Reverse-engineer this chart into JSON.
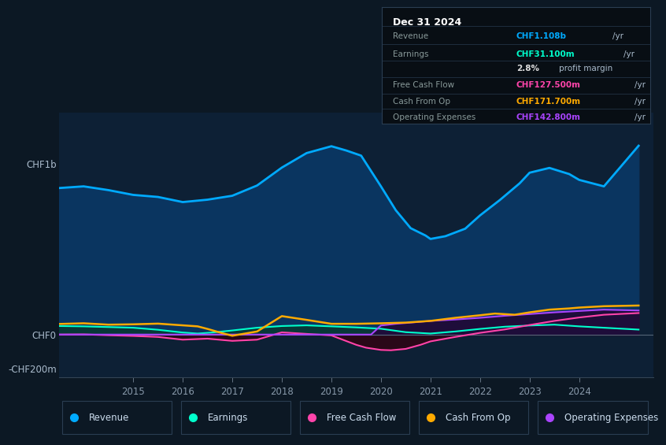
{
  "bg_color": "#0c1824",
  "plot_bg_color": "#0d2035",
  "grid_color": "#1a3550",
  "revenue_color": "#00aaff",
  "earnings_color": "#00ffcc",
  "fcf_color": "#ff44aa",
  "cashfromop_color": "#ffaa00",
  "opex_color": "#aa44ff",
  "revenue_fill": "#0a3560",
  "earnings_fill": "#083838",
  "fcf_fill": "#2a0818",
  "opex_fill": "#1e0d3a",
  "ylim": [
    -250,
    1300
  ],
  "xlim": [
    2013.5,
    2025.5
  ],
  "revenue_x": [
    2013.5,
    2014.0,
    2014.5,
    2015.0,
    2015.5,
    2016.0,
    2016.5,
    2017.0,
    2017.5,
    2018.0,
    2018.5,
    2019.0,
    2019.3,
    2019.6,
    2020.0,
    2020.3,
    2020.6,
    2020.9,
    2021.0,
    2021.3,
    2021.7,
    2022.0,
    2022.4,
    2022.8,
    2023.0,
    2023.4,
    2023.8,
    2024.0,
    2024.5,
    2025.2
  ],
  "revenue_y": [
    860,
    870,
    848,
    820,
    808,
    778,
    792,
    815,
    875,
    980,
    1065,
    1105,
    1080,
    1050,
    870,
    730,
    625,
    582,
    562,
    578,
    622,
    700,
    790,
    888,
    950,
    978,
    942,
    908,
    870,
    1108
  ],
  "earnings_x": [
    2013.5,
    2014.0,
    2014.5,
    2015.0,
    2015.5,
    2016.0,
    2016.3,
    2016.6,
    2017.0,
    2017.5,
    2018.0,
    2018.5,
    2019.0,
    2019.5,
    2020.0,
    2020.5,
    2021.0,
    2021.5,
    2022.0,
    2022.5,
    2023.0,
    2023.5,
    2024.0,
    2024.5,
    2025.2
  ],
  "earnings_y": [
    52,
    50,
    46,
    42,
    30,
    14,
    8,
    14,
    26,
    42,
    52,
    56,
    50,
    44,
    36,
    16,
    8,
    20,
    35,
    48,
    55,
    60,
    50,
    42,
    31
  ],
  "fcf_x": [
    2013.5,
    2014.0,
    2014.5,
    2015.0,
    2015.5,
    2016.0,
    2016.5,
    2017.0,
    2017.5,
    2018.0,
    2018.5,
    2019.0,
    2019.5,
    2019.7,
    2020.0,
    2020.2,
    2020.5,
    2020.8,
    2021.0,
    2021.5,
    2022.0,
    2022.5,
    2023.0,
    2023.5,
    2024.0,
    2024.5,
    2025.2
  ],
  "fcf_y": [
    2,
    3,
    -2,
    -6,
    -12,
    -28,
    -22,
    -35,
    -28,
    15,
    6,
    -3,
    -58,
    -75,
    -88,
    -90,
    -82,
    -58,
    -38,
    -12,
    12,
    32,
    58,
    82,
    102,
    118,
    128
  ],
  "cashfromop_x": [
    2013.5,
    2014.0,
    2014.5,
    2015.0,
    2015.5,
    2016.0,
    2016.3,
    2016.5,
    2016.8,
    2017.0,
    2017.5,
    2018.0,
    2018.5,
    2019.0,
    2019.5,
    2020.0,
    2020.5,
    2021.0,
    2021.5,
    2022.0,
    2022.3,
    2022.7,
    2023.0,
    2023.4,
    2023.8,
    2024.0,
    2024.5,
    2025.2
  ],
  "cashfromop_y": [
    64,
    68,
    60,
    62,
    66,
    56,
    50,
    35,
    10,
    -5,
    20,
    110,
    88,
    65,
    65,
    68,
    72,
    82,
    100,
    115,
    125,
    118,
    132,
    148,
    155,
    160,
    168,
    172
  ],
  "opex_x": [
    2013.5,
    2014.0,
    2014.5,
    2015.0,
    2015.5,
    2016.0,
    2016.5,
    2017.0,
    2017.5,
    2018.0,
    2018.5,
    2019.0,
    2019.5,
    2019.8,
    2020.0,
    2020.3,
    2020.6,
    2021.0,
    2021.5,
    2022.0,
    2022.5,
    2023.0,
    2023.5,
    2024.0,
    2024.5,
    2025.2
  ],
  "opex_y": [
    2,
    2,
    2,
    2,
    2,
    2,
    2,
    2,
    2,
    2,
    2,
    2,
    2,
    2,
    55,
    65,
    72,
    82,
    90,
    100,
    112,
    122,
    132,
    140,
    148,
    143
  ],
  "info_box": {
    "date": "Dec 31 2024",
    "rows": [
      {
        "label": "Revenue",
        "value": "CHF1.108b",
        "unit": "/yr",
        "value_color": "#00aaff"
      },
      {
        "label": "Earnings",
        "value": "CHF31.100m",
        "unit": "/yr",
        "value_color": "#00ffcc"
      },
      {
        "label": "",
        "value": "2.8%",
        "unit": "profit margin",
        "value_color": "#dddddd"
      },
      {
        "label": "Free Cash Flow",
        "value": "CHF127.500m",
        "unit": "/yr",
        "value_color": "#ff44aa"
      },
      {
        "label": "Cash From Op",
        "value": "CHF171.700m",
        "unit": "/yr",
        "value_color": "#ffaa00"
      },
      {
        "label": "Operating Expenses",
        "value": "CHF142.800m",
        "unit": "/yr",
        "value_color": "#aa44ff"
      }
    ]
  },
  "legend": [
    {
      "label": "Revenue",
      "color": "#00aaff"
    },
    {
      "label": "Earnings",
      "color": "#00ffcc"
    },
    {
      "label": "Free Cash Flow",
      "color": "#ff44aa"
    },
    {
      "label": "Cash From Op",
      "color": "#ffaa00"
    },
    {
      "label": "Operating Expenses",
      "color": "#aa44ff"
    }
  ],
  "xtick_years": [
    2015,
    2016,
    2017,
    2018,
    2019,
    2020,
    2021,
    2022,
    2023,
    2024
  ],
  "ytick_vals": [
    -200,
    0,
    1000
  ],
  "ytick_labels": [
    "-CHF200m",
    "CHF0",
    "CHF1b"
  ]
}
